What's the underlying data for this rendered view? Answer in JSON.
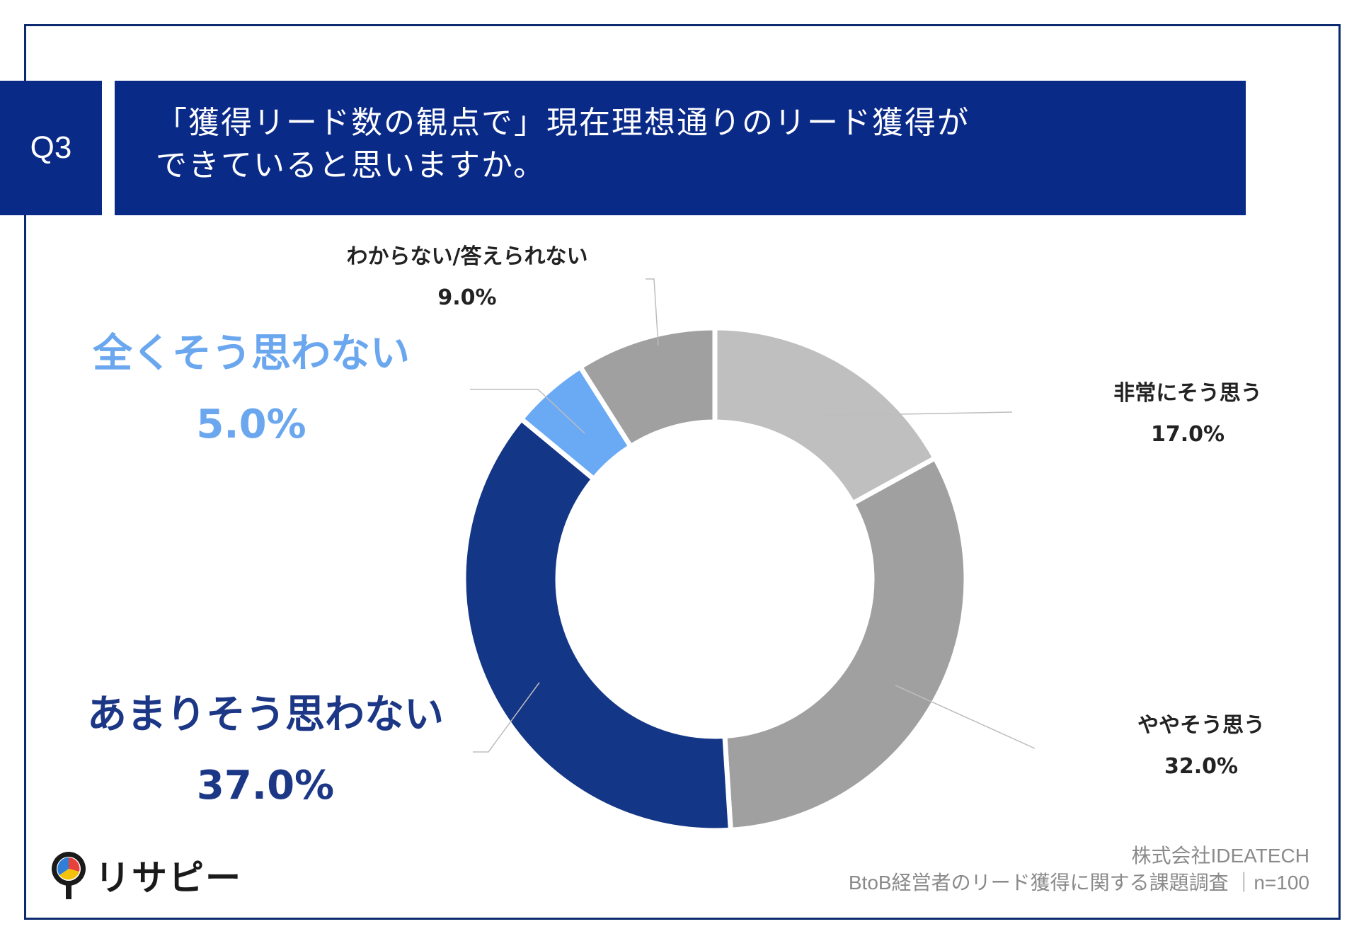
{
  "question": {
    "badge": "Q3",
    "line1": "「獲得リード数の観点で」現在理想通りのリード獲得が",
    "line2": "できていると思いますか。"
  },
  "chart_data": {
    "type": "pie",
    "donut": true,
    "unit": "%",
    "slices": [
      {
        "name": "非常にそう思う",
        "value": 17.0,
        "label": "17.0%",
        "color": "#bfbfbf"
      },
      {
        "name": "ややそう思う",
        "value": 32.0,
        "label": "32.0%",
        "color": "#a0a0a0"
      },
      {
        "name": "あまりそう思わない",
        "value": 37.0,
        "label": "37.0%",
        "color": "#143686"
      },
      {
        "name": "全くそう思わない",
        "value": 5.0,
        "label": "5.0%",
        "color": "#6aaaf5"
      },
      {
        "name": "わからない/答えられない",
        "value": 9.0,
        "label": "9.0%",
        "color": "#a0a0a0"
      }
    ]
  },
  "footer": {
    "company": "株式会社IDEATECH",
    "survey": "BtoB経営者のリード獲得に関する課題調査 ｜n=100"
  },
  "logo": {
    "text": "リサピー",
    "colors": [
      "#f5c20b",
      "#e8413c",
      "#2f7fd8"
    ]
  }
}
